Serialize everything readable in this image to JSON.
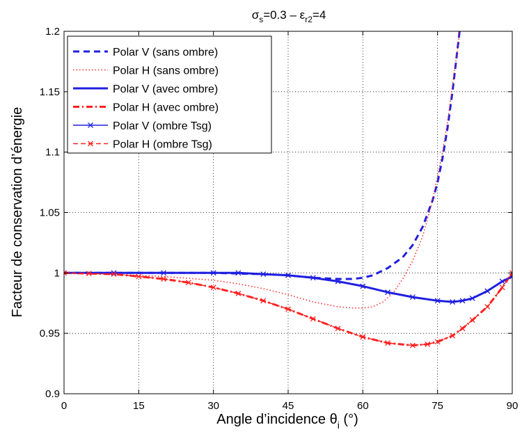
{
  "chart_data": {
    "type": "line",
    "title": {
      "sigma": "σ",
      "sigma_sub": "s",
      "sigma_val": "=0.3 – ε",
      "eps_sub": "r2",
      "eps_val": "=4"
    },
    "xlabel": {
      "main": "Angle d’incidence θ",
      "sub": "i",
      "unit": " (°)"
    },
    "ylabel": "Facteur de conservation d’énergie",
    "xlim": [
      0,
      90
    ],
    "ylim": [
      0.9,
      1.2
    ],
    "xticks": [
      0,
      15,
      30,
      45,
      60,
      75,
      90
    ],
    "yticks": [
      0.9,
      0.95,
      1,
      1.05,
      1.1,
      1.15,
      1.2
    ],
    "ytick_labels": [
      "0.9",
      "0.95",
      "1",
      "1.05",
      "1.1",
      "1.15",
      "1.2"
    ],
    "grid": true,
    "legend_position": "top-left",
    "series": [
      {
        "name": "Polar V (sans ombre)",
        "color": "#1f1fe0",
        "style": "dashed",
        "width": 3,
        "marker": "none",
        "x": [
          0,
          10,
          20,
          30,
          40,
          45,
          50,
          55,
          58,
          60,
          62,
          65,
          68,
          70,
          72,
          74,
          75,
          76,
          77,
          78,
          79,
          80
        ],
        "y": [
          1.0,
          1.0,
          1.0,
          1.0,
          0.999,
          0.998,
          0.996,
          0.995,
          0.995,
          0.996,
          0.998,
          1.004,
          1.013,
          1.023,
          1.038,
          1.06,
          1.075,
          1.095,
          1.12,
          1.15,
          1.185,
          1.22
        ]
      },
      {
        "name": "Polar H (sans ombre)",
        "color": "#ff2020",
        "style": "dotted",
        "width": 1.5,
        "marker": "none",
        "x": [
          0,
          10,
          20,
          30,
          35,
          40,
          45,
          50,
          55,
          58,
          60,
          62,
          64,
          66,
          68,
          70,
          72,
          74,
          75,
          76,
          77,
          78,
          79,
          80
        ],
        "y": [
          1.0,
          0.999,
          0.997,
          0.994,
          0.991,
          0.987,
          0.982,
          0.976,
          0.972,
          0.971,
          0.971,
          0.972,
          0.976,
          0.983,
          0.995,
          1.01,
          1.03,
          1.06,
          1.08,
          1.1,
          1.125,
          1.155,
          1.185,
          1.22
        ]
      },
      {
        "name": "Polar V (avec ombre)",
        "color": "#1f1fe0",
        "style": "solid",
        "width": 3,
        "marker": "none",
        "x": [
          0,
          10,
          20,
          30,
          35,
          40,
          45,
          50,
          55,
          60,
          65,
          70,
          75,
          78,
          80,
          82,
          85,
          88,
          90
        ],
        "y": [
          1.0,
          1.0,
          1.0,
          1.0,
          1.0,
          0.999,
          0.998,
          0.996,
          0.993,
          0.989,
          0.984,
          0.98,
          0.977,
          0.976,
          0.977,
          0.979,
          0.985,
          0.993,
          0.997
        ]
      },
      {
        "name": "Polar H (avec ombre)",
        "color": "#ff2020",
        "style": "dashdot",
        "width": 3,
        "marker": "none",
        "x": [
          0,
          5,
          10,
          15,
          20,
          25,
          30,
          35,
          40,
          45,
          50,
          55,
          60,
          65,
          70,
          73,
          75,
          78,
          80,
          82,
          85,
          88,
          90
        ],
        "y": [
          1.0,
          0.9995,
          0.999,
          0.997,
          0.995,
          0.992,
          0.988,
          0.983,
          0.977,
          0.97,
          0.962,
          0.954,
          0.947,
          0.942,
          0.94,
          0.941,
          0.943,
          0.948,
          0.954,
          0.961,
          0.972,
          0.988,
          1.0
        ]
      },
      {
        "name": "Polar V (ombre Tsg)",
        "color": "#1f1fe0",
        "style": "solid",
        "width": 1.5,
        "marker": "x",
        "x": [
          0,
          10,
          20,
          30,
          35,
          40,
          45,
          50,
          55,
          60,
          65,
          70,
          75,
          78,
          80,
          82,
          85,
          88,
          90
        ],
        "y": [
          1.0,
          1.0,
          1.0,
          1.0,
          1.0,
          0.999,
          0.998,
          0.996,
          0.993,
          0.989,
          0.984,
          0.98,
          0.977,
          0.976,
          0.977,
          0.979,
          0.985,
          0.993,
          0.997
        ]
      },
      {
        "name": "Polar H (ombre Tsg)",
        "color": "#ff2020",
        "style": "dashed",
        "width": 1.5,
        "marker": "x",
        "x": [
          0,
          5,
          10,
          15,
          20,
          25,
          30,
          35,
          40,
          45,
          50,
          55,
          60,
          65,
          70,
          73,
          75,
          78,
          80,
          82,
          85,
          88,
          90
        ],
        "y": [
          1.0,
          0.9995,
          0.999,
          0.997,
          0.995,
          0.992,
          0.988,
          0.983,
          0.977,
          0.97,
          0.962,
          0.954,
          0.947,
          0.942,
          0.94,
          0.941,
          0.943,
          0.948,
          0.954,
          0.961,
          0.972,
          0.988,
          1.0
        ]
      }
    ]
  }
}
